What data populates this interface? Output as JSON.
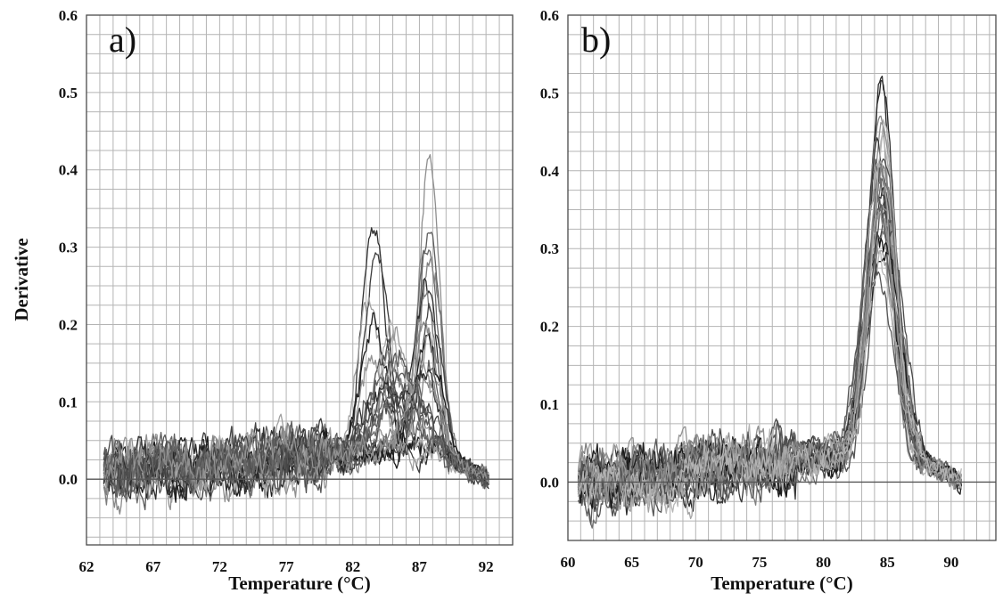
{
  "figure": {
    "colors": {
      "grid": "#b4b4b4",
      "frame": "#4a4a4a",
      "curves_dark": "#202020",
      "curves_light": "#b0b0b0"
    }
  },
  "chart_data": [
    {
      "type": "line",
      "panel_label": "a)",
      "xlabel": "Temperature (°C)",
      "ylabel": "Derivative",
      "xlim": [
        62,
        94
      ],
      "ylim": [
        -0.085,
        0.6
      ],
      "xticks": [
        62,
        67,
        72,
        77,
        82,
        87,
        92
      ],
      "xtick_labels": [
        "62",
        "67",
        "72",
        "77",
        "82",
        "87",
        "92"
      ],
      "yticks": [
        0.0,
        0.1,
        0.2,
        0.3,
        0.4,
        0.5,
        0.6
      ],
      "ytick_labels": [
        "0.0",
        "0.1",
        "0.2",
        "0.3",
        "0.4",
        "0.5",
        "0.6"
      ],
      "grid": true,
      "x_start": 63.3,
      "x_end": 92.2,
      "baseline_start": 0.01,
      "baseline_end": 0.04,
      "series_count": 26,
      "series": [
        {
          "peaks": [
            {
              "center": 87.7,
              "height": 0.37,
              "width": 0.75
            }
          ]
        },
        {
          "peaks": [
            {
              "center": 87.8,
              "height": 0.3,
              "width": 0.8
            }
          ]
        },
        {
          "peaks": [
            {
              "center": 87.6,
              "height": 0.27,
              "width": 0.8
            }
          ]
        },
        {
          "peaks": [
            {
              "center": 87.9,
              "height": 0.24,
              "width": 0.85
            }
          ]
        },
        {
          "peaks": [
            {
              "center": 87.5,
              "height": 0.21,
              "width": 0.9
            }
          ]
        },
        {
          "peaks": [
            {
              "center": 87.4,
              "height": 0.18,
              "width": 0.9
            }
          ]
        },
        {
          "peaks": [
            {
              "center": 88.0,
              "height": 0.16,
              "width": 0.85
            }
          ]
        },
        {
          "peaks": [
            {
              "center": 87.3,
              "height": 0.15,
              "width": 1.0
            }
          ]
        },
        {
          "peaks": [
            {
              "center": 87.6,
              "height": 0.13,
              "width": 1.0
            }
          ]
        },
        {
          "peaks": [
            {
              "center": 83.5,
              "height": 0.3,
              "width": 0.85
            }
          ]
        },
        {
          "peaks": [
            {
              "center": 83.8,
              "height": 0.27,
              "width": 0.9
            }
          ]
        },
        {
          "peaks": [
            {
              "center": 83.2,
              "height": 0.2,
              "width": 0.9
            }
          ]
        },
        {
          "peaks": [
            {
              "center": 83.6,
              "height": 0.17,
              "width": 1.0
            }
          ]
        },
        {
          "peaks": [
            {
              "center": 84.9,
              "height": 0.17,
              "width": 1.0
            }
          ]
        },
        {
          "peaks": [
            {
              "center": 85.2,
              "height": 0.14,
              "width": 1.1
            }
          ]
        },
        {
          "peaks": [
            {
              "center": 84.6,
              "height": 0.12,
              "width": 1.2
            }
          ]
        },
        {
          "peaks": [
            {
              "center": 85.5,
              "height": 0.13,
              "width": 1.2
            }
          ]
        },
        {
          "peaks": [
            {
              "center": 83.5,
              "height": 0.12,
              "width": 0.9
            },
            {
              "center": 87.6,
              "height": 0.14,
              "width": 0.8
            }
          ]
        },
        {
          "peaks": [
            {
              "center": 84.2,
              "height": 0.1,
              "width": 1.1
            },
            {
              "center": 87.7,
              "height": 0.12,
              "width": 0.8
            }
          ]
        },
        {
          "peaks": [
            {
              "center": 84.8,
              "height": 0.11,
              "width": 1.2
            },
            {
              "center": 87.9,
              "height": 0.1,
              "width": 0.8
            }
          ]
        },
        {
          "peaks": [
            {
              "center": 83.9,
              "height": 0.08,
              "width": 1.3
            },
            {
              "center": 87.2,
              "height": 0.1,
              "width": 0.9
            }
          ]
        },
        {
          "peaks": [
            {
              "center": 85.8,
              "height": 0.09,
              "width": 1.4
            }
          ]
        },
        {
          "peaks": [
            {
              "center": 84.4,
              "height": 0.06,
              "width": 1.5
            },
            {
              "center": 87.5,
              "height": 0.06,
              "width": 1.0
            }
          ]
        },
        {
          "peaks": [
            {
              "center": 86.2,
              "height": 0.08,
              "width": 1.6
            }
          ]
        },
        {
          "peaks": [
            {
              "center": 85.0,
              "height": 0.05,
              "width": 1.5
            }
          ]
        },
        {
          "peaks": [
            {
              "center": 87.1,
              "height": 0.11,
              "width": 1.0
            }
          ]
        }
      ]
    },
    {
      "type": "line",
      "panel_label": "b)",
      "xlabel": "Temperature (°C)",
      "ylabel": "",
      "xlim": [
        60,
        93.5
      ],
      "ylim": [
        -0.075,
        0.6
      ],
      "xticks": [
        60,
        65,
        70,
        75,
        80,
        85,
        90
      ],
      "xtick_labels": [
        "60",
        "65",
        "70",
        "75",
        "80",
        "85",
        "90"
      ],
      "yticks": [
        0.0,
        0.1,
        0.2,
        0.3,
        0.4,
        0.5,
        0.6
      ],
      "ytick_labels": [
        "0.0",
        "0.1",
        "0.2",
        "0.3",
        "0.4",
        "0.5",
        "0.6"
      ],
      "grid": true,
      "x_start": 60.8,
      "x_end": 90.8,
      "baseline_start": 0.0,
      "baseline_end": 0.04,
      "series_count": 26,
      "series": [
        {
          "peaks": [
            {
              "center": 84.6,
              "height": 0.49,
              "width": 0.95
            }
          ]
        },
        {
          "peaks": [
            {
              "center": 84.5,
              "height": 0.47,
              "width": 0.95
            }
          ]
        },
        {
          "peaks": [
            {
              "center": 84.7,
              "height": 0.44,
              "width": 1.0
            }
          ]
        },
        {
          "peaks": [
            {
              "center": 84.4,
              "height": 0.42,
              "width": 1.0
            }
          ]
        },
        {
          "peaks": [
            {
              "center": 84.6,
              "height": 0.4,
              "width": 1.0
            }
          ]
        },
        {
          "peaks": [
            {
              "center": 84.3,
              "height": 0.39,
              "width": 1.05
            }
          ]
        },
        {
          "peaks": [
            {
              "center": 84.8,
              "height": 0.38,
              "width": 1.05
            }
          ]
        },
        {
          "peaks": [
            {
              "center": 84.5,
              "height": 0.37,
              "width": 1.05
            }
          ]
        },
        {
          "peaks": [
            {
              "center": 84.2,
              "height": 0.36,
              "width": 1.1
            }
          ]
        },
        {
          "peaks": [
            {
              "center": 84.7,
              "height": 0.35,
              "width": 1.1
            }
          ]
        },
        {
          "peaks": [
            {
              "center": 84.4,
              "height": 0.34,
              "width": 1.1
            }
          ]
        },
        {
          "peaks": [
            {
              "center": 84.9,
              "height": 0.33,
              "width": 1.1
            }
          ]
        },
        {
          "peaks": [
            {
              "center": 84.1,
              "height": 0.32,
              "width": 1.15
            }
          ]
        },
        {
          "peaks": [
            {
              "center": 84.6,
              "height": 0.31,
              "width": 1.15
            }
          ]
        },
        {
          "peaks": [
            {
              "center": 84.3,
              "height": 0.3,
              "width": 1.15
            }
          ]
        },
        {
          "peaks": [
            {
              "center": 84.8,
              "height": 0.29,
              "width": 1.2
            }
          ]
        },
        {
          "peaks": [
            {
              "center": 84.5,
              "height": 0.28,
              "width": 1.2
            }
          ]
        },
        {
          "peaks": [
            {
              "center": 84.2,
              "height": 0.27,
              "width": 1.2
            }
          ]
        },
        {
          "peaks": [
            {
              "center": 84.7,
              "height": 0.26,
              "width": 1.25
            }
          ]
        },
        {
          "peaks": [
            {
              "center": 84.4,
              "height": 0.25,
              "width": 1.25
            }
          ]
        },
        {
          "peaks": [
            {
              "center": 84.0,
              "height": 0.24,
              "width": 1.3
            }
          ]
        },
        {
          "peaks": [
            {
              "center": 84.9,
              "height": 0.3,
              "width": 1.3
            }
          ]
        },
        {
          "peaks": [
            {
              "center": 84.5,
              "height": 0.33,
              "width": 1.0
            },
            {
              "center": 86.8,
              "height": 0.04,
              "width": 0.8
            }
          ]
        },
        {
          "peaks": [
            {
              "center": 84.3,
              "height": 0.38,
              "width": 1.0
            }
          ]
        },
        {
          "peaks": [
            {
              "center": 84.6,
              "height": 0.36,
              "width": 1.1
            }
          ]
        },
        {
          "peaks": [
            {
              "center": 84.8,
              "height": 0.42,
              "width": 0.95
            }
          ]
        }
      ]
    }
  ]
}
